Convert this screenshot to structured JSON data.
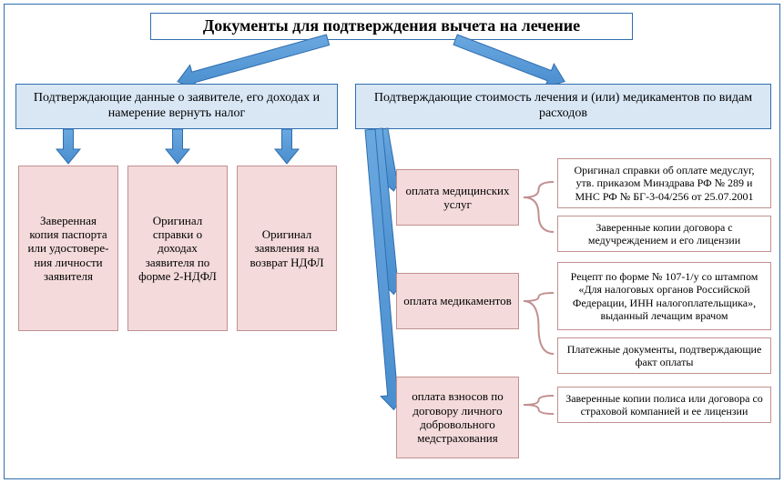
{
  "colors": {
    "frame_border": "#2f6eaf",
    "title_bg": "#ffffff",
    "title_border": "#2f6eaf",
    "header_bg": "#d9e7f5",
    "header_border": "#2f6eaf",
    "leaf_bg": "#f4dada",
    "leaf_border": "#c29090",
    "side_bg": "#ffffff",
    "side_border": "#c29090",
    "arrow_fill": "#4a8ecf",
    "arrow_stroke": "#2f6eaf",
    "brace_stroke": "#c29090"
  },
  "fonts": {
    "title_size": 18,
    "title_weight": "bold",
    "header_size": 14,
    "leaf_size": 13,
    "side_size": 12
  },
  "title": "Документы для подтверждения вычета на лечение",
  "left_header": "Подтверждающие данные о заявителе, его доходах и намерение вернуть налог",
  "right_header": "Подтверждающие стоимость лечения и (или) медикаментов по видам расходов",
  "left_items": {
    "l1": "Заверенная копия паспорта или удостовере­ния личности заявителя",
    "l2": "Оригинал справки о доходах заявителя по форме 2-НДФЛ",
    "l3": "Оригинал заявления на возврат НДФЛ"
  },
  "right_items": {
    "r1": "оплата медицинских услуг",
    "r2": "оплата медикаментов",
    "r3": "оплата взносов по договору личного добровольного медстрахования"
  },
  "side_items": {
    "s1": "Оригинал справки об оплате медуслуг, утв. приказом Минздрава РФ № 289 и МНС РФ № БГ-3-04/256 от 25.07.2001",
    "s2": "Заверенные копии договора с медучреждением и его лицензии",
    "s3": "Рецепт по форме № 107-1/у со штампом «Для налоговых органов Российской Федерации, ИНН налогоплательщика», выданный лечащим врачом",
    "s4": "Платежные документы, подтверждающие факт оплаты",
    "s5": "Заверенные копии полиса или договора со страховой компанией и ее лицензии"
  }
}
